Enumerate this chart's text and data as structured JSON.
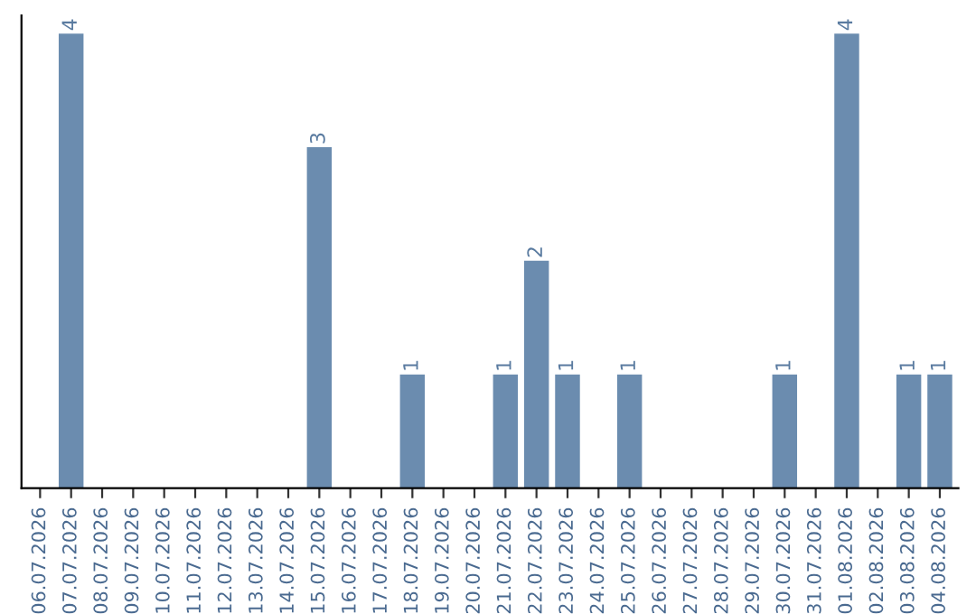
{
  "chart_data": {
    "type": "bar",
    "categories": [
      "06.07.2026",
      "07.07.2026",
      "08.07.2026",
      "09.07.2026",
      "10.07.2026",
      "11.07.2026",
      "12.07.2026",
      "13.07.2026",
      "14.07.2026",
      "15.07.2026",
      "16.07.2026",
      "17.07.2026",
      "18.07.2026",
      "19.07.2026",
      "20.07.2026",
      "21.07.2026",
      "22.07.2026",
      "23.07.2026",
      "24.07.2026",
      "25.07.2026",
      "26.07.2026",
      "27.07.2026",
      "28.07.2026",
      "29.07.2026",
      "30.07.2026",
      "31.07.2026",
      "01.08.2026",
      "02.08.2026",
      "03.08.2026",
      "04.08.2026"
    ],
    "values": [
      0,
      4,
      0,
      0,
      0,
      0,
      0,
      0,
      0,
      3,
      0,
      0,
      1,
      0,
      0,
      1,
      2,
      1,
      0,
      1,
      0,
      0,
      0,
      0,
      1,
      0,
      4,
      0,
      1,
      1
    ],
    "value_labels": [
      null,
      "4",
      null,
      null,
      null,
      null,
      null,
      null,
      null,
      "3",
      null,
      null,
      "1",
      null,
      null,
      "1",
      "2",
      "1",
      null,
      "1",
      null,
      null,
      null,
      null,
      "1",
      null,
      "4",
      null,
      "1",
      "1"
    ],
    "color": "#6b8caf",
    "tick_labels": "x",
    "grid": false,
    "legend": false
  }
}
